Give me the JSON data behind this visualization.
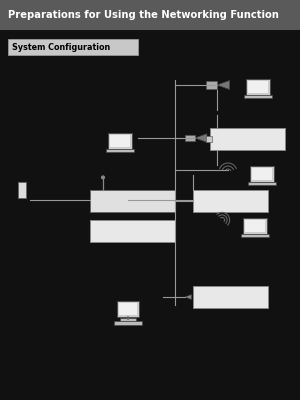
{
  "title": "Preparations for Using the Networking Function",
  "title_bg": "#5a5a5a",
  "title_color": "#ffffff",
  "bg_color": "#111111",
  "section_label": "System Configuration",
  "section_label_bg": "#c8c8c8",
  "section_label_color": "#000000",
  "fig_w": 3.0,
  "fig_h": 4.0,
  "dpi": 100
}
